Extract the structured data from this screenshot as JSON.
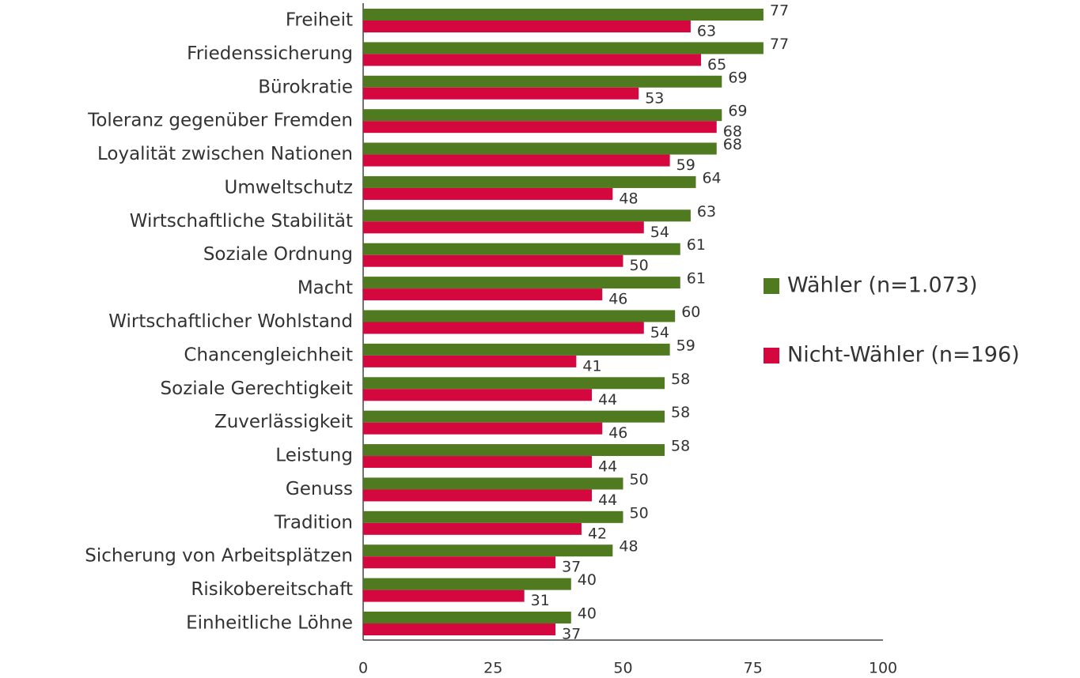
{
  "chart_data": {
    "type": "barh",
    "categories": [
      "Freiheit",
      "Friedenssicherung",
      "Bürokratie",
      "Toleranz gegenüber Fremden",
      "Loyalität zwischen Nationen",
      "Umweltschutz",
      "Wirtschaftliche Stabilität",
      "Soziale Ordnung",
      "Macht",
      "Wirtschaftlicher Wohlstand",
      "Chancengleichheit",
      "Soziale Gerechtigkeit",
      "Zuverlässigkeit",
      "Leistung",
      "Genuss",
      "Tradition",
      "Sicherung von Arbeitsplätzen",
      "Risikobereitschaft",
      "Einheitliche Löhne"
    ],
    "series": [
      {
        "name": "Wähler (n=1.073)",
        "color": "#4f7a1f",
        "values": [
          77,
          77,
          69,
          69,
          68,
          64,
          63,
          61,
          61,
          60,
          59,
          58,
          58,
          58,
          50,
          50,
          48,
          40,
          40
        ]
      },
      {
        "name": "Nicht-Wähler (n=196)",
        "color": "#d5073f",
        "values": [
          63,
          65,
          53,
          68,
          59,
          48,
          54,
          50,
          46,
          54,
          41,
          44,
          46,
          44,
          44,
          42,
          37,
          31,
          37
        ]
      }
    ],
    "xlim": [
      0,
      100
    ],
    "xticks": [
      0,
      25,
      50,
      75,
      100
    ],
    "legend": "right"
  }
}
